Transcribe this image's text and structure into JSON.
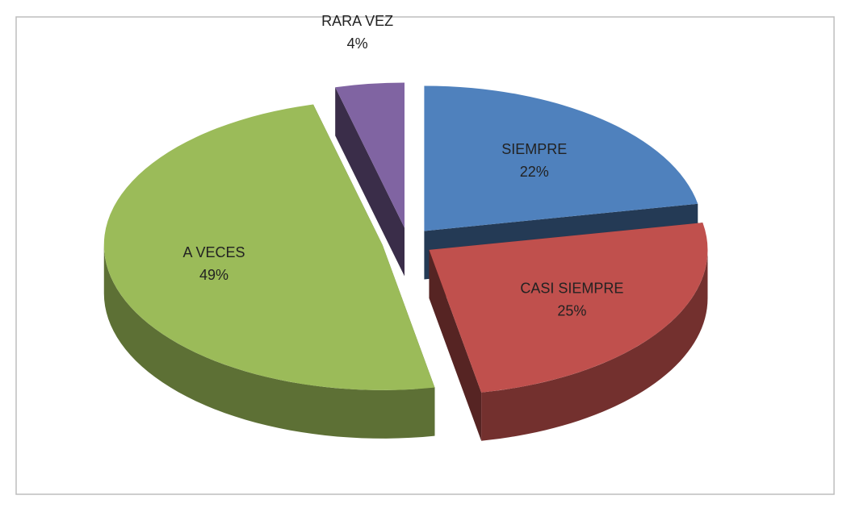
{
  "chart_data": {
    "type": "pie",
    "categories": [
      "SIEMPRE",
      "CASI SIEMPRE",
      "A VECES",
      "RARA VEZ"
    ],
    "values": [
      22,
      25,
      49,
      4
    ],
    "value_labels": [
      "22%",
      "25%",
      "49%",
      "4%"
    ],
    "colors": [
      "#4f81bd",
      "#c0504d",
      "#9bbb59",
      "#8064a2"
    ]
  }
}
